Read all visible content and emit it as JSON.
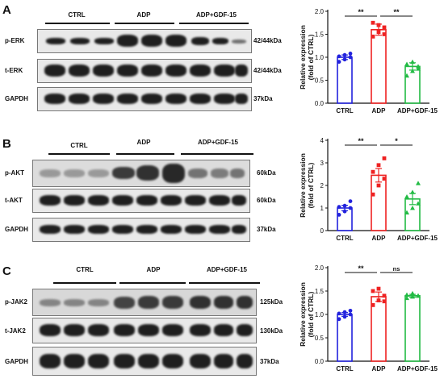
{
  "panels": [
    {
      "letter": "A",
      "groups": [
        "CTRL",
        "ADP",
        "ADP+GDF-15"
      ],
      "blots": [
        {
          "label": "p-ERK",
          "kda": "42/44kDa"
        },
        {
          "label": "t-ERK",
          "kda": "42/44kDa"
        },
        {
          "label": "GAPDH",
          "kda": "37kDa"
        }
      ]
    },
    {
      "letter": "B",
      "groups": [
        "CTRL",
        "ADP",
        "ADP+GDF-15"
      ],
      "blots": [
        {
          "label": "p-AKT",
          "kda": "60kDa"
        },
        {
          "label": "t-AKT",
          "kda": "60kDa"
        },
        {
          "label": "GAPDH",
          "kda": "37kDa"
        }
      ]
    },
    {
      "letter": "C",
      "groups": [
        "CTRL",
        "ADP",
        "ADP+GDF-15"
      ],
      "blots": [
        {
          "label": "p-JAK2",
          "kda": "125kDa"
        },
        {
          "label": "t-JAK2",
          "kda": "130kDa"
        },
        {
          "label": "GAPDH",
          "kda": "37kDa"
        }
      ]
    }
  ],
  "colors": {
    "ctrl": "#2222dd",
    "adp": "#ee2222",
    "adp_gdf15": "#22bb44",
    "axis": "#111111"
  },
  "chart_data": [
    {
      "type": "bar",
      "ylabel": "Relative expression\n(fold of CTRL)",
      "categories": [
        "CTRL",
        "ADP",
        "ADP+GDF-15"
      ],
      "values": [
        1.0,
        1.6,
        0.8
      ],
      "errors": [
        0.05,
        0.12,
        0.08
      ],
      "points": [
        [
          0.9,
          0.95,
          1.0,
          1.02,
          1.05,
          1.08
        ],
        [
          1.45,
          1.55,
          1.65,
          1.75,
          1.7,
          1.5
        ],
        [
          0.6,
          0.7,
          0.8,
          0.85,
          0.9,
          0.75
        ]
      ],
      "ylim": [
        0,
        2.0
      ],
      "yticks": [
        "0.0",
        "0.5",
        "1.0",
        "1.5",
        "2.0"
      ],
      "significance": [
        "**",
        "**"
      ]
    },
    {
      "type": "bar",
      "ylabel": "Relative expression\n(fold of CTRL)",
      "categories": [
        "CTRL",
        "ADP",
        "ADP+GDF-15"
      ],
      "values": [
        1.0,
        2.45,
        1.4
      ],
      "errors": [
        0.12,
        0.3,
        0.25
      ],
      "points": [
        [
          0.7,
          0.85,
          1.0,
          1.05,
          1.1,
          1.3
        ],
        [
          1.6,
          2.0,
          2.3,
          2.6,
          2.9,
          3.2
        ],
        [
          0.8,
          1.0,
          1.2,
          1.5,
          1.7,
          2.1
        ]
      ],
      "ylim": [
        0,
        4
      ],
      "yticks": [
        "0",
        "1",
        "2",
        "3",
        "4"
      ],
      "significance": [
        "**",
        "*"
      ]
    },
    {
      "type": "bar",
      "ylabel": "Relative expression\n(fold of CTRL)",
      "categories": [
        "CTRL",
        "ADP",
        "ADP+GDF-15"
      ],
      "values": [
        1.0,
        1.38,
        1.4
      ],
      "errors": [
        0.04,
        0.1,
        0.03
      ],
      "points": [
        [
          0.9,
          0.95,
          1.0,
          1.02,
          1.05,
          1.08
        ],
        [
          1.2,
          1.3,
          1.4,
          1.5,
          1.55,
          1.28
        ],
        [
          1.35,
          1.38,
          1.4,
          1.42,
          1.45,
          1.4
        ]
      ],
      "ylim": [
        0,
        2.0
      ],
      "yticks": [
        "0.0",
        "0.5",
        "1.0",
        "1.5",
        "2.0"
      ],
      "significance": [
        "**",
        "ns"
      ]
    }
  ]
}
